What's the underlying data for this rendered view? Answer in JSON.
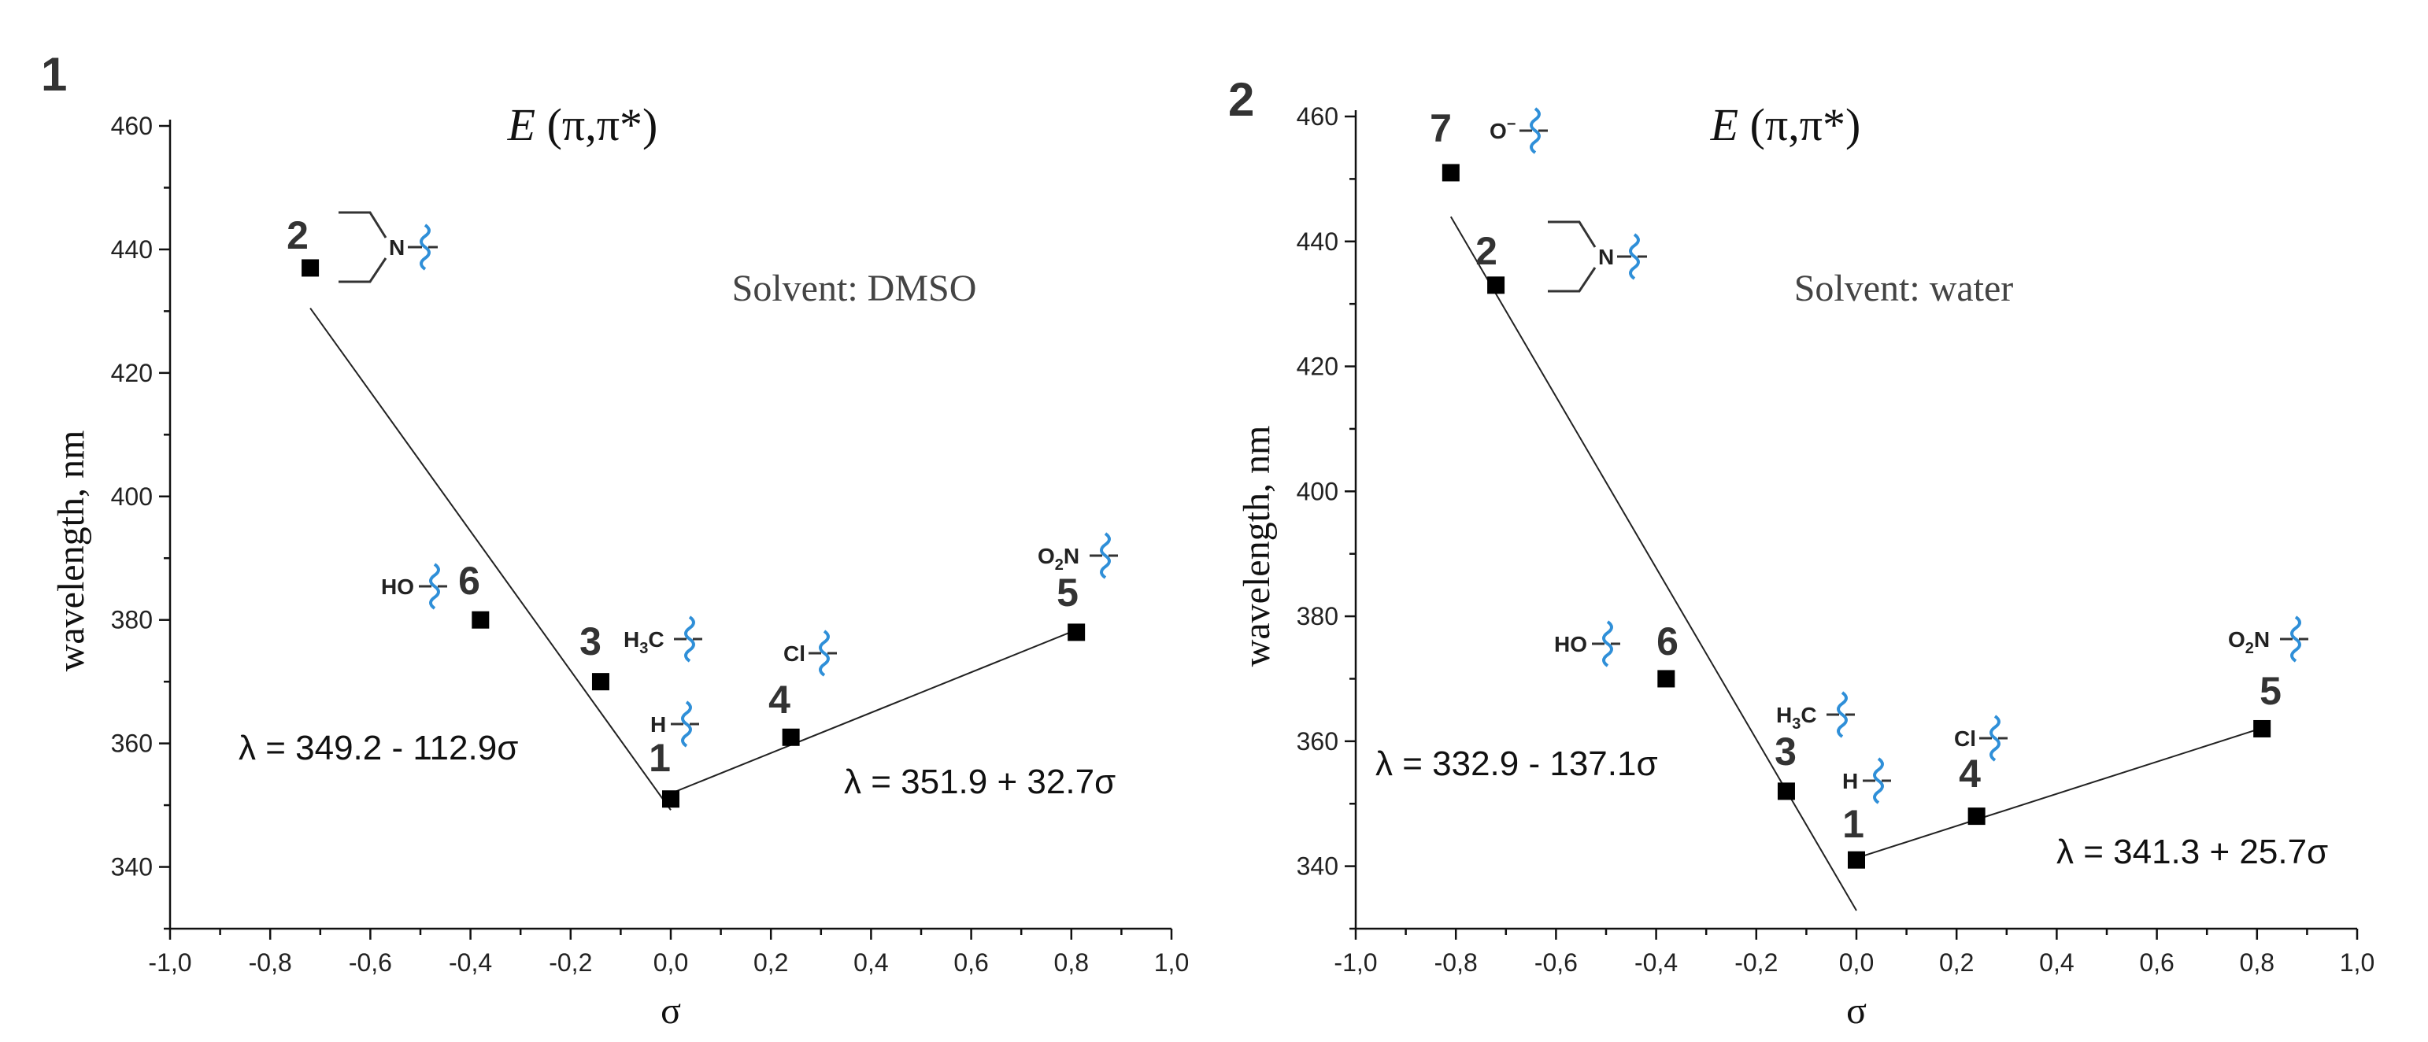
{
  "chart_data": [
    {
      "panel_label": "1",
      "type": "scatter",
      "title_italic": "E",
      "title_rest": " (π,π*)",
      "solvent": "Solvent: DMSO",
      "xlabel": "σ",
      "ylabel": "wavelength, nm",
      "xlim": [
        -1.0,
        1.0
      ],
      "ylim": [
        330,
        460
      ],
      "xticks": [
        "-1,0",
        "-0,8",
        "-0,6",
        "-0,4",
        "-0,2",
        "0,0",
        "0,2",
        "0,4",
        "0,6",
        "0,8",
        "1,0"
      ],
      "yticks": [
        "340",
        "360",
        "380",
        "400",
        "420",
        "440",
        "460"
      ],
      "points": [
        {
          "label": "1",
          "sigma": 0.0,
          "wavelength": 351,
          "substituent": "H",
          "sub_html": "H"
        },
        {
          "label": "2",
          "sigma": -0.72,
          "wavelength": 437,
          "substituent": "N(CH3)2",
          "sub_html": "N"
        },
        {
          "label": "3",
          "sigma": -0.14,
          "wavelength": 370,
          "substituent": "H3C",
          "sub_html": "H3C"
        },
        {
          "label": "4",
          "sigma": 0.24,
          "wavelength": 361,
          "substituent": "Cl",
          "sub_html": "Cl"
        },
        {
          "label": "5",
          "sigma": 0.81,
          "wavelength": 378,
          "substituent": "O2N",
          "sub_html": "O2N"
        },
        {
          "label": "6",
          "sigma": -0.38,
          "wavelength": 380,
          "substituent": "HO",
          "sub_html": "HO"
        }
      ],
      "fits": [
        {
          "equation": "λ = 349.2 - 112.9σ",
          "intercept": 349.2,
          "slope": -112.9,
          "x_range": [
            -0.72,
            0.0
          ]
        },
        {
          "equation": "λ = 351.9 + 32.7σ",
          "intercept": 351.9,
          "slope": 32.7,
          "x_range": [
            0.0,
            0.81
          ]
        }
      ]
    },
    {
      "panel_label": "2",
      "type": "scatter",
      "title_italic": "E",
      "title_rest": " (π,π*)",
      "solvent": "Solvent: water",
      "xlabel": "σ",
      "ylabel": "wavelength, nm",
      "xlim": [
        -1.0,
        1.0
      ],
      "ylim": [
        330,
        460
      ],
      "xticks": [
        "-1,0",
        "-0,8",
        "-0,6",
        "-0,4",
        "-0,2",
        "0,0",
        "0,2",
        "0,4",
        "0,6",
        "0,8",
        "1,0"
      ],
      "yticks": [
        "340",
        "360",
        "380",
        "400",
        "420",
        "440",
        "460"
      ],
      "points": [
        {
          "label": "1",
          "sigma": 0.0,
          "wavelength": 341,
          "substituent": "H",
          "sub_html": "H"
        },
        {
          "label": "2",
          "sigma": -0.72,
          "wavelength": 433,
          "substituent": "N(CH3)2",
          "sub_html": "N"
        },
        {
          "label": "3",
          "sigma": -0.14,
          "wavelength": 352,
          "substituent": "H3C",
          "sub_html": "H3C"
        },
        {
          "label": "4",
          "sigma": 0.24,
          "wavelength": 348,
          "substituent": "Cl",
          "sub_html": "Cl"
        },
        {
          "label": "5",
          "sigma": 0.81,
          "wavelength": 362,
          "substituent": "O2N",
          "sub_html": "O2N"
        },
        {
          "label": "6",
          "sigma": -0.38,
          "wavelength": 370,
          "substituent": "HO",
          "sub_html": "HO"
        },
        {
          "label": "7",
          "sigma": -0.81,
          "wavelength": 451,
          "substituent": "O−",
          "sub_html": "O−"
        }
      ],
      "fits": [
        {
          "equation": "λ = 332.9 - 137.1σ",
          "intercept": 332.9,
          "slope": -137.1,
          "x_range": [
            -0.81,
            0.0
          ]
        },
        {
          "equation": "λ = 341.3 + 25.7σ",
          "intercept": 341.3,
          "slope": 25.7,
          "x_range": [
            0.0,
            0.81
          ]
        }
      ]
    }
  ]
}
